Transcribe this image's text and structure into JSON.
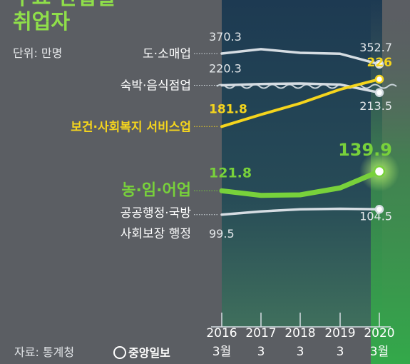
{
  "header": {
    "title_line1": "주요 산업별",
    "title_line2": "취업자",
    "unit": "단위: 만명"
  },
  "footer": {
    "source": "자료: 통계청",
    "logo_text": "중앙일보"
  },
  "colors": {
    "background": "#5b5e63",
    "panel_top": "#1d3a52",
    "panel_bottom": "#3f6f5c",
    "highlight_col": "#3aa34a",
    "title": "#8fdf4a",
    "series_grey": "#d6dde3",
    "series_yellow": "#f5d51d",
    "series_green": "#78d13b"
  },
  "chart_data": {
    "type": "line",
    "x": [
      "2016",
      "2017",
      "2018",
      "2019",
      "2020"
    ],
    "x_sublabels": [
      "3월",
      "3",
      "3",
      "3",
      "3월"
    ],
    "axis_break_between": [
      "도·소매업",
      "숙박·음식점업"
    ],
    "series": [
      {
        "name": "도·소매업",
        "color": "grey",
        "values": [
          370.3,
          377.5,
          371.5,
          370.0,
          352.7
        ],
        "start_label": "370.3",
        "end_label": "352.7"
      },
      {
        "name": "숙박·음식점업",
        "color": "grey",
        "values": [
          220.3,
          221.5,
          222.0,
          221.0,
          213.5
        ],
        "start_label": "220.3",
        "end_label": "213.5"
      },
      {
        "name": "보건·사회복지 서비스업",
        "color": "yellow",
        "values": [
          181.8,
          193.0,
          203.5,
          216.5,
          226
        ],
        "start_label": "181.8",
        "end_label": "226"
      },
      {
        "name": "농·임·어업",
        "color": "green",
        "values": [
          121.8,
          117.5,
          118.0,
          124.5,
          139.9
        ],
        "start_label": "121.8",
        "end_label": "139.9"
      },
      {
        "name": "공공행정·국방 사회보장 행정",
        "name_line1": "공공행정·국방",
        "name_line2": "사회보장 행정",
        "color": "grey",
        "values": [
          99.5,
          102.5,
          104.5,
          105.0,
          104.5
        ],
        "start_label": "99.5",
        "end_label": "104.5"
      }
    ]
  }
}
